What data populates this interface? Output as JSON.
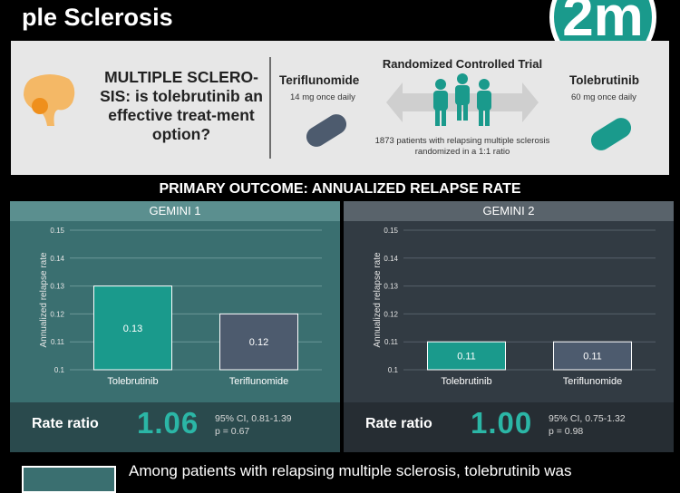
{
  "title": "ple Sclerosis",
  "logo_text": "2m",
  "intro": {
    "question": "MULTIPLE SCLERO-SIS: is tolebrutinib an effective treat-ment option?",
    "arm_left": {
      "name": "Teriflunomide",
      "dose": "14 mg once daily"
    },
    "arm_right": {
      "name": "Tolebrutinib",
      "dose": "60 mg once daily"
    },
    "trial_title": "Randomized Controlled Trial",
    "trial_desc": "1873 patients with relapsing multiple sclerosis randomized in a 1:1 ratio"
  },
  "outcome_title": "PRIMARY OUTCOME: ANNUALIZED RELAPSE RATE",
  "colors": {
    "teal": "#1a9a8c",
    "slate": "#4d5b6e"
  },
  "chart_data": [
    {
      "type": "bar",
      "title": "GEMINI 1",
      "categories": [
        "Tolebrutinib",
        "Teriflunomide"
      ],
      "values": [
        0.13,
        0.12
      ],
      "value_labels": [
        "0.13",
        "0.12"
      ],
      "ylabel": "Annualized relapse rate",
      "ylim": [
        0.1,
        0.15
      ],
      "yticks": [
        "0.1",
        "0.11",
        "0.12",
        "0.13",
        "0.14",
        "0.15"
      ],
      "grid": true,
      "rate_ratio_label": "Rate ratio",
      "rate_ratio": "1.06",
      "ci": "95% CI, 0.81-1.39",
      "p": "p = 0.67"
    },
    {
      "type": "bar",
      "title": "GEMINI 2",
      "categories": [
        "Tolebrutinib",
        "Teriflunomide"
      ],
      "values": [
        0.11,
        0.11
      ],
      "value_labels": [
        "0.11",
        "0.11"
      ],
      "ylabel": "Annualized relapse rate",
      "ylim": [
        0.1,
        0.15
      ],
      "yticks": [
        "0.1",
        "0.11",
        "0.12",
        "0.13",
        "0.14",
        "0.15"
      ],
      "grid": true,
      "rate_ratio_label": "Rate ratio",
      "rate_ratio": "1.00",
      "ci": "95% CI, 0.75-1.32",
      "p": "p = 0.98"
    }
  ],
  "conclusion": "Among patients with relapsing multiple sclerosis, tolebrutinib was"
}
